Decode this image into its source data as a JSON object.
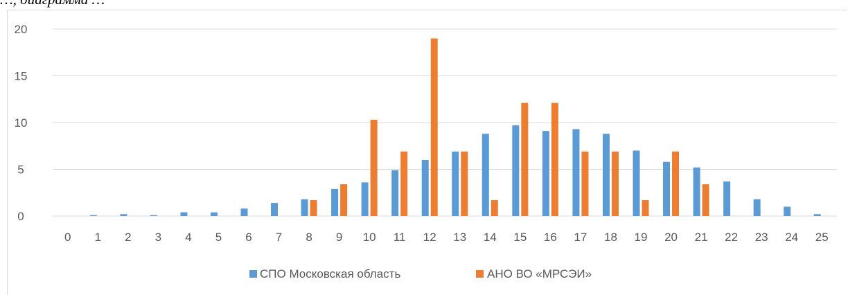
{
  "header": {
    "text": "…, диаграмма …"
  },
  "chart_data": {
    "type": "bar",
    "categories": [
      "0",
      "1",
      "2",
      "3",
      "4",
      "5",
      "6",
      "7",
      "8",
      "9",
      "10",
      "11",
      "12",
      "13",
      "14",
      "15",
      "16",
      "17",
      "18",
      "19",
      "20",
      "21",
      "22",
      "23",
      "24",
      "25"
    ],
    "series": [
      {
        "name": "СПО Московская область",
        "color": "#5b9bd5",
        "values": [
          0,
          0.1,
          0.2,
          0.1,
          0.4,
          0.4,
          0.8,
          1.4,
          1.8,
          2.9,
          3.6,
          4.9,
          6.0,
          6.9,
          8.8,
          9.7,
          9.1,
          9.3,
          8.8,
          7.0,
          5.8,
          5.2,
          3.7,
          1.8,
          1.0,
          0.2
        ]
      },
      {
        "name": "АНО ВО «МРСЭИ»",
        "color": "#ed7d31",
        "values": [
          0,
          0,
          0,
          0,
          0,
          0,
          0,
          0,
          1.7,
          3.4,
          10.3,
          6.9,
          19.0,
          6.9,
          1.7,
          12.1,
          12.1,
          6.9,
          6.9,
          1.7,
          6.9,
          3.4,
          0,
          0,
          0,
          0
        ]
      }
    ],
    "ylim": [
      0,
      20
    ],
    "yticks": [
      "0",
      "5",
      "10",
      "15",
      "20"
    ],
    "grid": true,
    "legend": "bottom"
  }
}
